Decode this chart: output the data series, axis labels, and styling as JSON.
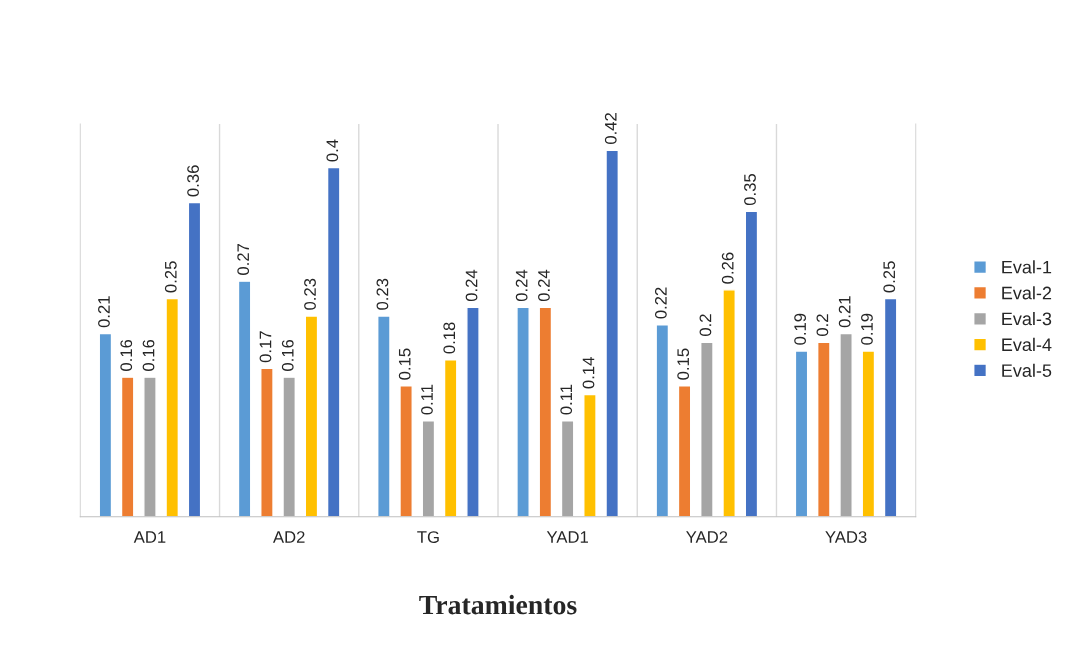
{
  "chart_data": {
    "type": "bar",
    "xlabel": "Tratamientos",
    "categories": [
      "AD1",
      "AD2",
      "TG",
      "YAD1",
      "YAD2",
      "YAD3"
    ],
    "series": [
      {
        "name": "Eval-1",
        "color": "#5b9bd5",
        "values": [
          0.21,
          0.27,
          0.23,
          0.24,
          0.22,
          0.19
        ]
      },
      {
        "name": "Eval-2",
        "color": "#ed7d31",
        "values": [
          0.16,
          0.17,
          0.15,
          0.24,
          0.15,
          0.2
        ]
      },
      {
        "name": "Eval-3",
        "color": "#a5a5a5",
        "values": [
          0.16,
          0.16,
          0.11,
          0.11,
          0.2,
          0.21
        ]
      },
      {
        "name": "Eval-4",
        "color": "#ffc000",
        "values": [
          0.25,
          0.23,
          0.18,
          0.14,
          0.26,
          0.19
        ]
      },
      {
        "name": "Eval-5",
        "color": "#4472c4",
        "values": [
          0.36,
          0.4,
          0.24,
          0.42,
          0.35,
          0.25
        ]
      }
    ],
    "ylim": [
      0,
      0.45
    ],
    "data_labels": true,
    "grid": "x",
    "legend": "right",
    "tick_labels": "x"
  }
}
